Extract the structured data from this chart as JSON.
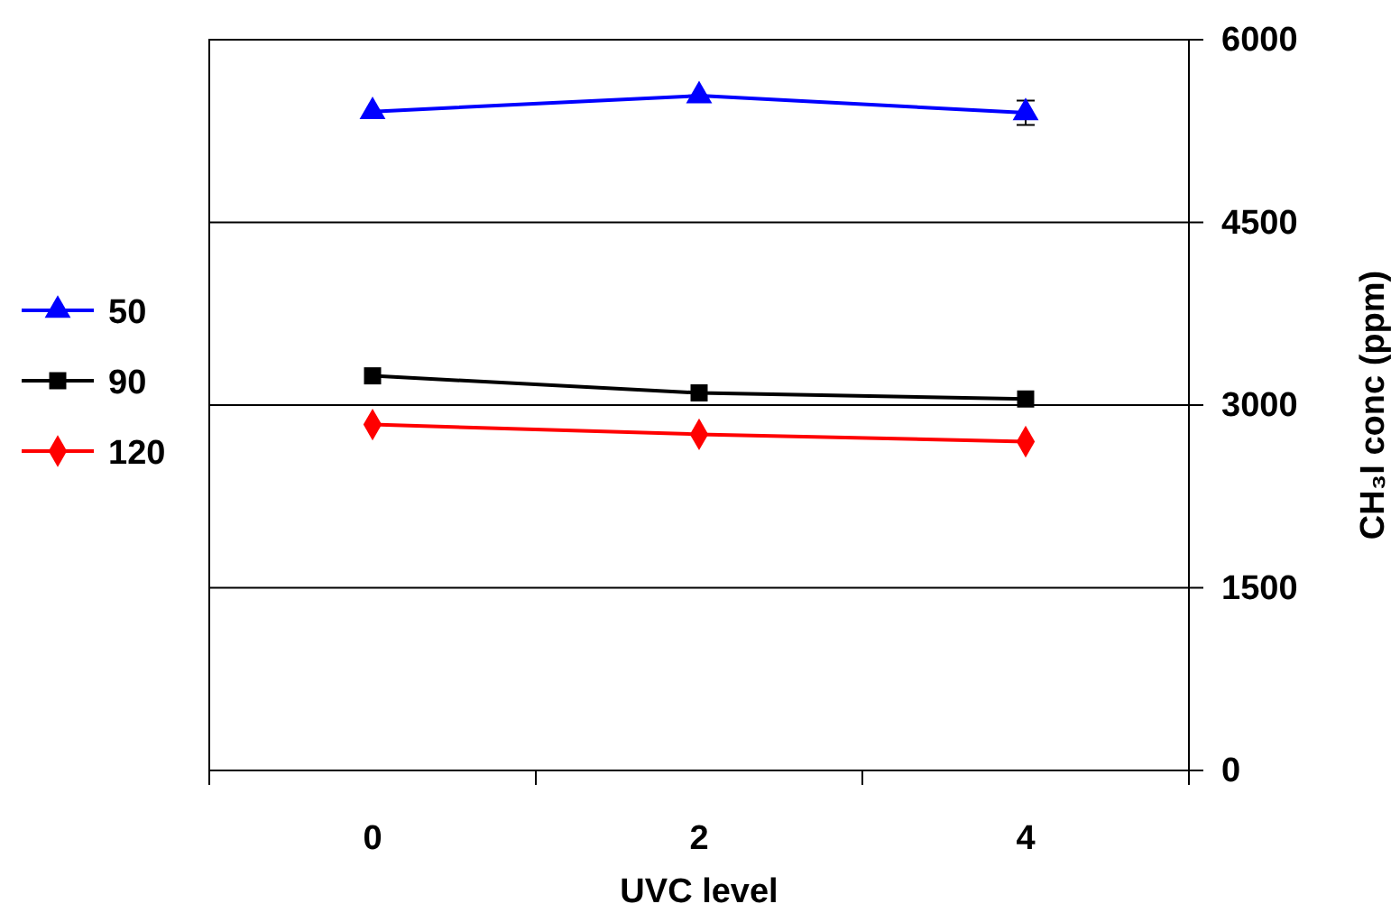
{
  "chart_data": {
    "type": "line",
    "xlabel": "UVC level",
    "ylabel": "CH₃I conc (ppm)",
    "categories": [
      "0",
      "2",
      "4"
    ],
    "series": [
      {
        "name": "50",
        "color": "#0000ff",
        "marker": "triangle",
        "values": [
          5410,
          5540,
          5400
        ],
        "errors": [
          null,
          null,
          100
        ]
      },
      {
        "name": "90",
        "color": "#000000",
        "marker": "square",
        "values": [
          3240,
          3100,
          3050
        ]
      },
      {
        "name": "120",
        "color": "#ff0000",
        "marker": "diamond",
        "values": [
          2840,
          2760,
          2700
        ]
      }
    ],
    "ylim": [
      0,
      6000
    ],
    "yticks": [
      0,
      1500,
      3000,
      4500,
      6000
    ],
    "grid": "y",
    "legend": "left"
  }
}
